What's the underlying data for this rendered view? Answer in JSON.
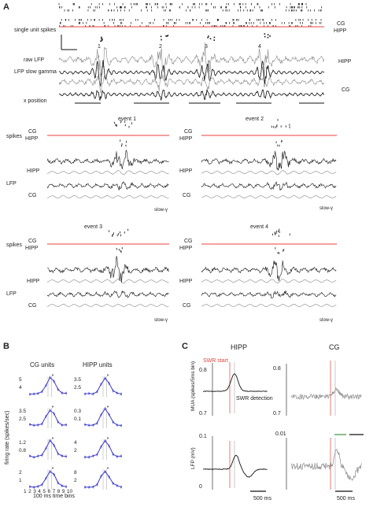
{
  "panel_a": {
    "letter": "A",
    "single_unit_label": "single unit spikes",
    "region_cg": "CG",
    "region_hipp": "HIPP",
    "raw_lfp_label": "raw LFP",
    "slow_gamma_label": "LFP slow gamma",
    "x_position_label": "x position",
    "event_numbers": [
      "1",
      "2",
      "3",
      "4"
    ],
    "lfp_hipp": "HIPP",
    "lfp_cg": "CG",
    "events": [
      {
        "title": "event 1",
        "spikes_label": "spikes",
        "lfp_label": "LFP",
        "cg": "CG",
        "hipp": "HIPP",
        "lfp_hipp": "HIPP",
        "lfp_cg": "CG",
        "slow": "slow-γ"
      },
      {
        "title": "event 2",
        "cg": "CG",
        "hipp": "HIPP",
        "lfp_hipp": "HIPP",
        "lfp_cg": "CG",
        "slow": "slow-γ"
      },
      {
        "title": "event 3",
        "spikes_label": "spikes",
        "lfp_label": "LFP",
        "cg": "CG",
        "hipp": "HIPP",
        "lfp_hipp": "HIPP",
        "lfp_cg": "CG",
        "slow": "slow-γ"
      },
      {
        "title": "event 4",
        "cg": "CG",
        "hipp": "HIPP",
        "lfp_hipp": "HIPP",
        "lfp_cg": "CG",
        "slow": "slow-γ"
      }
    ]
  },
  "panel_b": {
    "letter": "B",
    "cg_title": "CG units",
    "hipp_title": "HIPP units",
    "ylabel": "firing rate (spikes/sec)",
    "xlabel": "100 ms time bins",
    "x_ticks": [
      "1",
      "2",
      "3",
      "4",
      "5",
      "6",
      "7",
      "8",
      "9",
      "10"
    ],
    "cg_scales": [
      [
        "5",
        "4"
      ],
      [
        "3.5",
        "2.5"
      ],
      [
        "1.2",
        "0.8"
      ],
      [
        "2",
        "1"
      ]
    ],
    "hipp_scales": [
      [
        "3.5",
        "2.5"
      ],
      [
        "0.3",
        "0.1"
      ],
      [
        "4",
        "2"
      ],
      [
        "8",
        "2"
      ]
    ],
    "star": "*"
  },
  "panel_c": {
    "letter": "C",
    "hipp_title": "HIPP",
    "cg_title": "CG",
    "swr_start": "SWR start",
    "swr_detection": "SWR detection",
    "mua_label": "MUA (spikes/5ms bin)",
    "lfp_label": "LFP (mV)",
    "mua_ticks": [
      "0.8",
      "0.7"
    ],
    "lfp_ticks": [
      "0.1",
      "0"
    ],
    "cg_lfp_tick": "0.01",
    "scalebar": "500 ms",
    "scalebar2": "500 ms"
  },
  "colors": {
    "red": "#e8413c",
    "blue": "#3a3ad0",
    "grey": "#888888",
    "dark": "#111111",
    "light": "#b0b0b0",
    "green": "#5aa05a"
  }
}
